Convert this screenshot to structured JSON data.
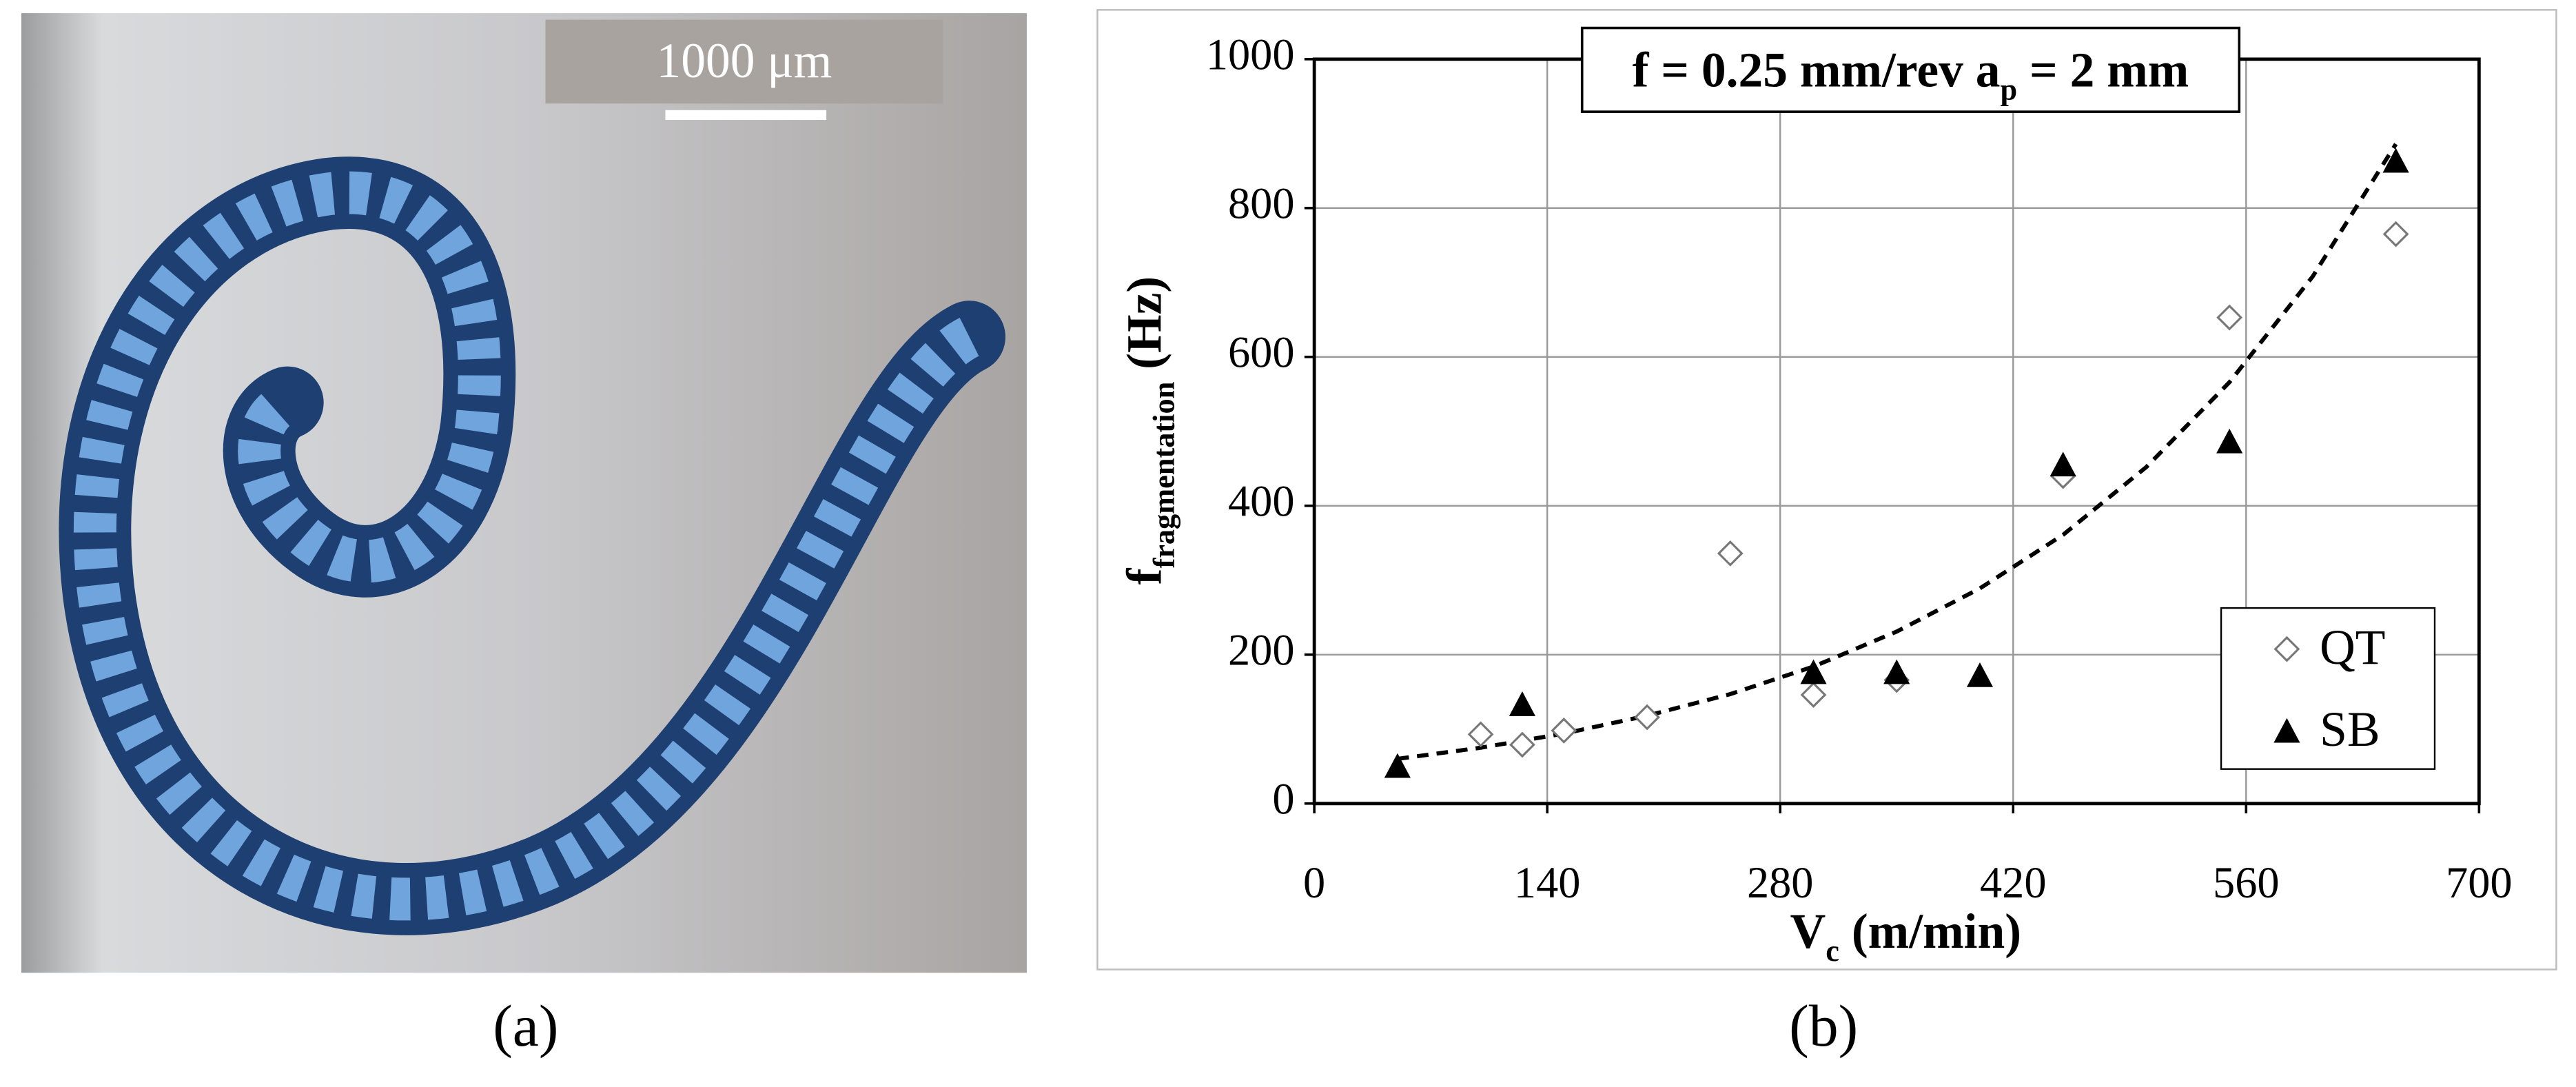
{
  "photo": {
    "scale_bar": "1000 μm"
  },
  "panel_labels": [
    "(a)",
    "(b)"
  ],
  "chart_data": {
    "type": "scatter",
    "title": {
      "main": "f = 0.25 mm/rev a",
      "sub": "p",
      "end": " = 2 mm"
    },
    "xlabel": {
      "main": "V",
      "sub": "c",
      "end": " (m/min)"
    },
    "ylabel": {
      "main": "f",
      "sub": "fragmentation",
      "end": " (Hz)"
    },
    "xlim": [
      0,
      700
    ],
    "xticks": [
      0,
      140,
      280,
      420,
      560,
      700
    ],
    "ylim": [
      0,
      1000
    ],
    "yticks": [
      0,
      200,
      400,
      600,
      800,
      1000
    ],
    "grid": true,
    "legend": "lower right",
    "series": [
      {
        "name": "QT",
        "color": "#777777",
        "marker": "diamond",
        "x": [
          100,
          125,
          150,
          200,
          250,
          300,
          350,
          450,
          550,
          650
        ],
        "values": [
          93,
          79,
          98,
          116,
          336,
          146,
          166,
          440,
          653,
          765
        ]
      },
      {
        "name": "SB",
        "color": "#000000",
        "marker": "triangle",
        "x": [
          50,
          125,
          300,
          350,
          400,
          450,
          550,
          650
        ],
        "values": [
          50,
          133,
          176,
          176,
          172,
          455,
          486,
          863
        ]
      }
    ],
    "trendline": {
      "color": "#000000",
      "x": [
        50,
        100,
        150,
        200,
        250,
        300,
        350,
        400,
        450,
        500,
        550,
        600,
        650
      ],
      "values": [
        60,
        75,
        94,
        118,
        147,
        184,
        231,
        289,
        361,
        452,
        566,
        708,
        886
      ]
    }
  }
}
